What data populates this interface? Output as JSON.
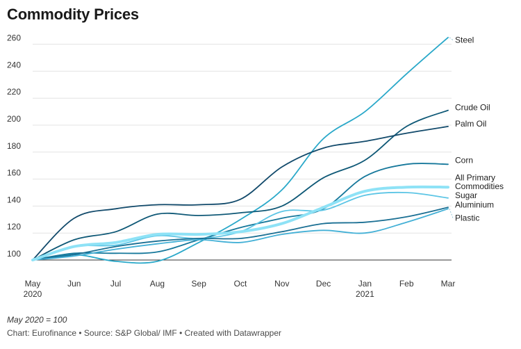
{
  "title": "Commodity Prices",
  "note": "May 2020 = 100",
  "source": "Chart: Eurofinance • Source: S&P Global/ IMF • Created with Datawrapper",
  "chart_data": {
    "type": "line",
    "title": "Commodity Prices",
    "xlabel": "",
    "ylabel": "",
    "ylim": [
      100,
      265
    ],
    "yticks": [
      100,
      120,
      140,
      160,
      180,
      200,
      220,
      240,
      260
    ],
    "grid": "horizontal",
    "categories": [
      "May",
      "Jun",
      "Jul",
      "Aug",
      "Sep",
      "Oct",
      "Nov",
      "Dec",
      "Jan",
      "Feb",
      "Mar"
    ],
    "category_sublabels": {
      "0": "2020",
      "8": "2021"
    },
    "series": [
      {
        "name": "Steel",
        "color": "#29a8c9",
        "values": [
          100,
          104,
          99,
          99,
          113,
          130,
          152,
          190,
          210,
          238,
          265
        ]
      },
      {
        "name": "Crude Oil",
        "color": "#0e5876",
        "values": [
          100,
          115,
          121,
          134,
          133,
          135,
          140,
          161,
          174,
          199,
          211
        ]
      },
      {
        "name": "Palm Oil",
        "color": "#124a6b",
        "values": [
          100,
          131,
          138,
          141,
          141,
          145,
          169,
          183,
          188,
          194,
          199
        ]
      },
      {
        "name": "Corn",
        "color": "#16789b",
        "values": [
          100,
          105,
          105,
          106,
          115,
          124,
          131,
          138,
          162,
          171,
          171
        ]
      },
      {
        "name": "All Primary Commodities",
        "color": "#8ee2f6",
        "values": [
          100,
          110,
          113,
          119,
          119,
          121,
          127,
          139,
          151,
          154,
          154
        ]
      },
      {
        "name": "Sugar",
        "color": "#5cc5e5",
        "values": [
          100,
          110,
          111,
          118,
          116,
          121,
          136,
          137,
          148,
          150,
          146
        ]
      },
      {
        "name": "Aluminium",
        "color": "#1a6f93",
        "values": [
          100,
          104,
          110,
          114,
          116,
          116,
          121,
          127,
          128,
          132,
          139
        ]
      },
      {
        "name": "Plastic",
        "color": "#43b0d6",
        "values": [
          100,
          103,
          108,
          112,
          115,
          113,
          119,
          122,
          120,
          128,
          138
        ]
      }
    ],
    "series_labels": [
      {
        "name": "Steel",
        "value": 261
      },
      {
        "name": "Crude Oil",
        "value": 211
      },
      {
        "name": "Palm Oil",
        "value": 199
      },
      {
        "name": "Corn",
        "value": 172
      },
      {
        "name": "All Primary",
        "value": 159
      },
      {
        "name": "Commodities",
        "value": 152.5
      },
      {
        "name": "Sugar",
        "value": 146
      },
      {
        "name": "Aluminium",
        "value": 139
      },
      {
        "name": "Plastic",
        "value": 129
      }
    ]
  }
}
